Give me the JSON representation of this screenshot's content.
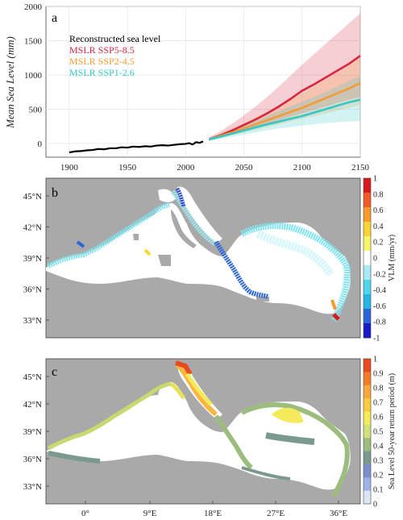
{
  "chart_data": [
    {
      "type": "line",
      "panel": "a",
      "ylabel": "Mean Sea Level (mm)",
      "xlim": [
        1880,
        2150
      ],
      "ylim": [
        -200,
        2000
      ],
      "x_ticks": [
        "1900",
        "1950",
        "2000",
        "2050",
        "2100",
        "2150"
      ],
      "y_ticks": [
        "0",
        "500",
        "1000",
        "1500",
        "2000"
      ],
      "x_tick_values": [
        1900,
        1950,
        2000,
        2050,
        2100,
        2150
      ],
      "y_tick_values": [
        0,
        500,
        1000,
        1500,
        2000
      ],
      "grid": true,
      "legend_position": "top-left",
      "series": [
        {
          "name": "Reconstructed sea level",
          "color": "#000000",
          "x": [
            1900,
            1905,
            1910,
            1915,
            1920,
            1925,
            1930,
            1935,
            1940,
            1945,
            1950,
            1955,
            1960,
            1965,
            1970,
            1975,
            1980,
            1985,
            1990,
            1995,
            2000,
            2003,
            2006,
            2009,
            2012,
            2015
          ],
          "y": [
            -130,
            -115,
            -110,
            -100,
            -95,
            -80,
            -85,
            -70,
            -70,
            -55,
            -60,
            -45,
            -50,
            -40,
            -45,
            -30,
            -25,
            -30,
            -20,
            -10,
            -5,
            5,
            -15,
            20,
            10,
            30
          ]
        },
        {
          "name": "MSLR SSP5-8.5",
          "color": "#d7263d",
          "x": [
            2020,
            2030,
            2040,
            2050,
            2060,
            2070,
            2080,
            2090,
            2100,
            2110,
            2120,
            2130,
            2140,
            2150
          ],
          "y": [
            60,
            120,
            190,
            270,
            350,
            440,
            540,
            650,
            770,
            860,
            960,
            1060,
            1160,
            1280
          ],
          "lower": [
            40,
            90,
            140,
            190,
            240,
            290,
            340,
            390,
            440,
            490,
            540,
            590,
            640,
            680
          ],
          "upper": [
            90,
            180,
            290,
            410,
            540,
            680,
            830,
            990,
            1150,
            1300,
            1450,
            1600,
            1750,
            1900
          ]
        },
        {
          "name": "MSLR SSP2-4.5",
          "color": "#f39c34",
          "x": [
            2020,
            2030,
            2040,
            2050,
            2060,
            2070,
            2080,
            2090,
            2100,
            2110,
            2120,
            2130,
            2140,
            2150
          ],
          "y": [
            60,
            110,
            160,
            220,
            280,
            340,
            400,
            460,
            520,
            590,
            660,
            730,
            800,
            880
          ],
          "lower": [
            40,
            80,
            120,
            160,
            200,
            240,
            280,
            320,
            360,
            400,
            440,
            480,
            520,
            560
          ],
          "upper": [
            80,
            150,
            220,
            300,
            380,
            460,
            550,
            640,
            730,
            830,
            930,
            1030,
            1140,
            1250
          ]
        },
        {
          "name": "MSLR SSP1-2.6",
          "color": "#36c6c6",
          "x": [
            2020,
            2030,
            2040,
            2050,
            2060,
            2070,
            2080,
            2090,
            2100,
            2110,
            2120,
            2130,
            2140,
            2150
          ],
          "y": [
            60,
            100,
            145,
            190,
            235,
            280,
            320,
            360,
            400,
            450,
            500,
            550,
            600,
            640
          ],
          "lower": [
            40,
            70,
            100,
            130,
            160,
            190,
            220,
            240,
            260,
            280,
            300,
            310,
            320,
            330
          ],
          "upper": [
            80,
            140,
            200,
            260,
            330,
            400,
            470,
            540,
            610,
            680,
            750,
            830,
            910,
            990
          ]
        }
      ]
    },
    {
      "type": "heatmap",
      "panel": "b",
      "colorbar_label": "VLM (mm/yr)",
      "colorbar_ticks": [
        "1",
        "0.8",
        "0.6",
        "0.4",
        "0.2",
        "0",
        "-0.2",
        "-0.4",
        "-0.6",
        "-0.8",
        "-1"
      ],
      "colorbar_range": [
        -1,
        1
      ],
      "y_ticks": [
        "45°N",
        "42°N",
        "39°N",
        "36°N",
        "33°N"
      ],
      "colorbar_colors": [
        "#d7191c",
        "#f05a28",
        "#f99a2b",
        "#fdd435",
        "#f5f56a",
        "#ffffff",
        "#a7ecf5",
        "#4fd6ea",
        "#25b6e6",
        "#2a66d8",
        "#1a18c8"
      ]
    },
    {
      "type": "heatmap",
      "panel": "c",
      "colorbar_label": "Sea Level 50-year return period (m)",
      "colorbar_ticks": [
        "1",
        "0.9",
        "0.8",
        "0.7",
        "0.6",
        "0.5",
        "0.4",
        "0.3",
        "0.2",
        "0.1",
        "0"
      ],
      "colorbar_range": [
        0,
        1
      ],
      "y_ticks": [
        "45°N",
        "42°N",
        "39°N",
        "36°N",
        "33°N"
      ],
      "x_ticks": [
        "0°",
        "9°E",
        "18°E",
        "27°E",
        "36°E"
      ],
      "colorbar_colors": [
        "#e84b1e",
        "#f47b25",
        "#f9a73a",
        "#fccb3f",
        "#f3ea5c",
        "#d0e07a",
        "#9dbd7f",
        "#7b9a8e",
        "#7b8ed0",
        "#9db3e8",
        "#dbe6f4"
      ]
    }
  ]
}
